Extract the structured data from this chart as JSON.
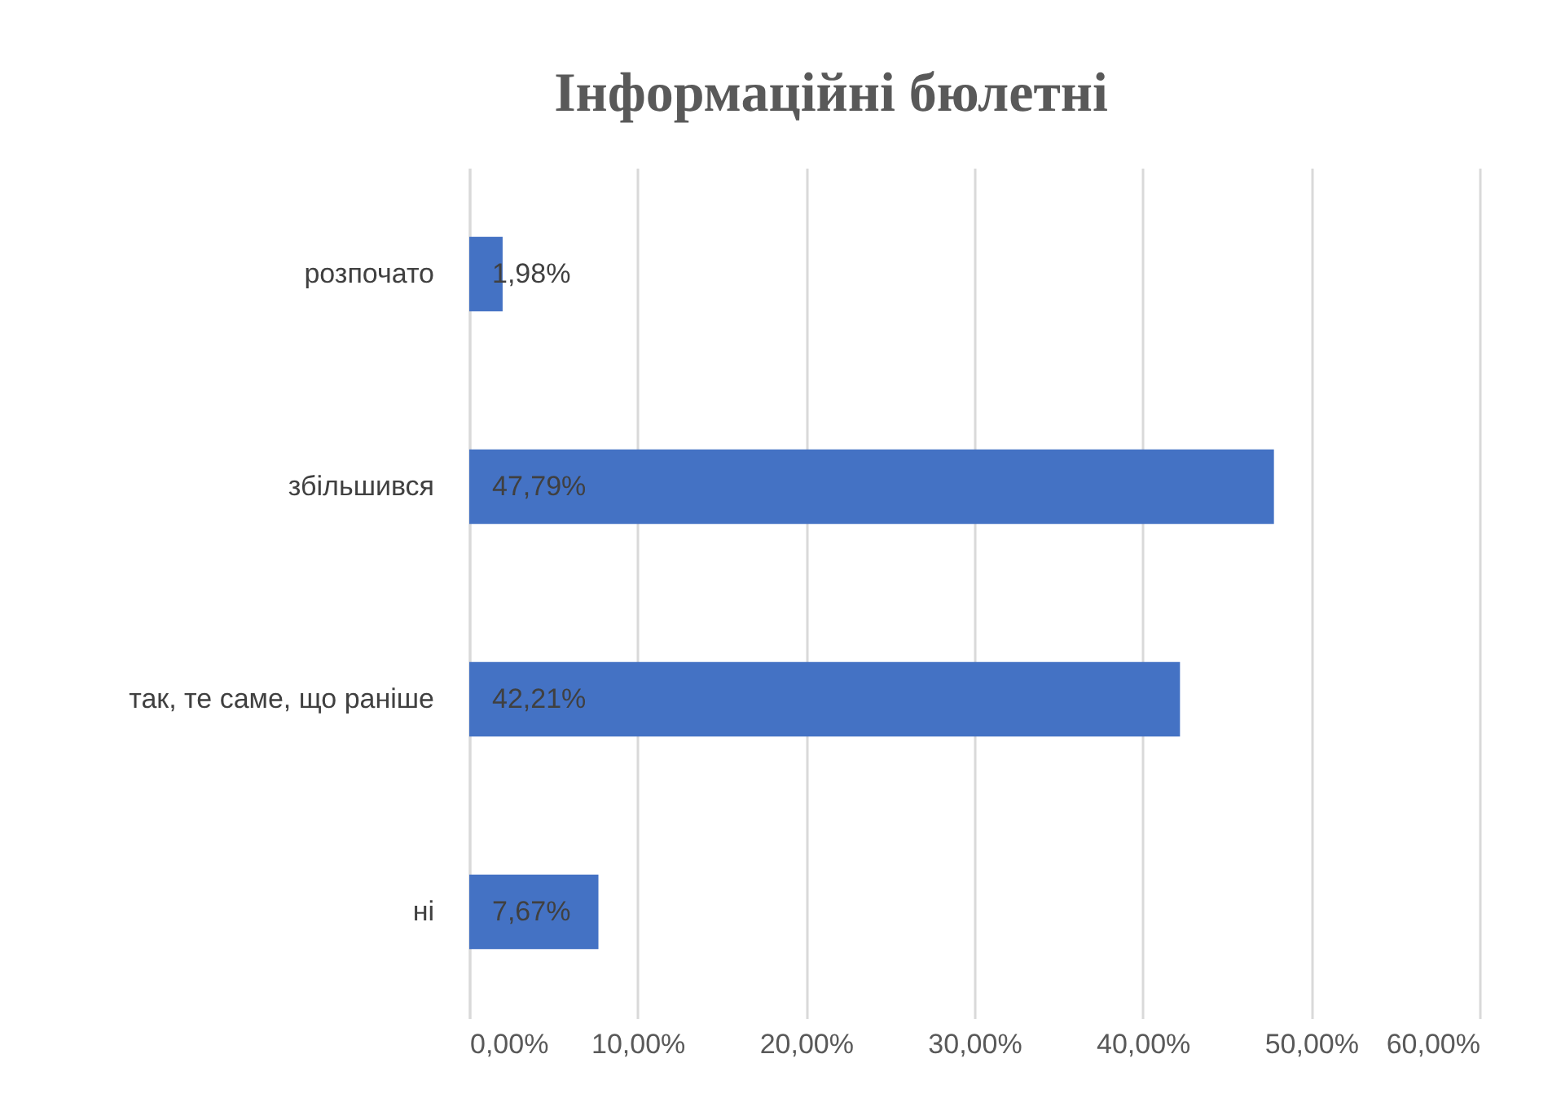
{
  "chart_data": {
    "type": "bar",
    "orientation": "horizontal",
    "title": "Інформаційні бюлетні",
    "categories": [
      "розпочато",
      "збільшився",
      "так, те саме, що раніше",
      "ні"
    ],
    "values": [
      1.98,
      47.79,
      42.21,
      7.67
    ],
    "value_labels": [
      "1,98%",
      "47,79%",
      "42,21%",
      "7,67%"
    ],
    "color": "#4472c4",
    "xlim": [
      0,
      60
    ],
    "xticks": [
      {
        "value": 0,
        "label": "0,00%"
      },
      {
        "value": 10,
        "label": "10,00%"
      },
      {
        "value": 20,
        "label": "20,00%"
      },
      {
        "value": 30,
        "label": "30,00%"
      },
      {
        "value": 40,
        "label": "40,00%"
      },
      {
        "value": 50,
        "label": "50,00%"
      },
      {
        "value": 60,
        "label": "60,00%"
      }
    ],
    "grid": "x"
  }
}
